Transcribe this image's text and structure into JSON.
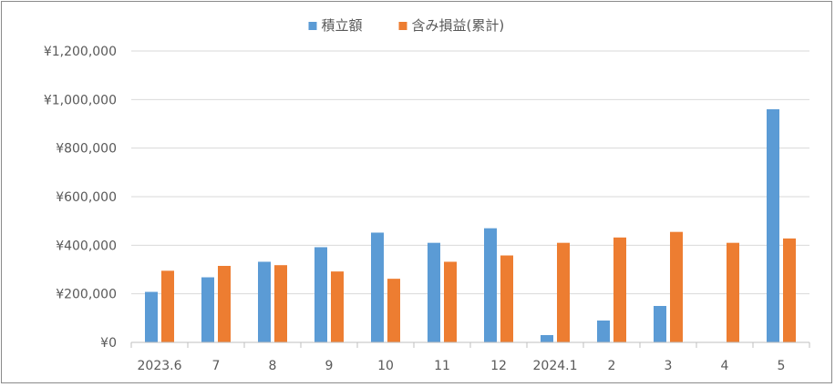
{
  "chart_data": {
    "type": "bar",
    "title": "",
    "xlabel": "",
    "ylabel": "",
    "categories": [
      "2023.6",
      "7",
      "8",
      "9",
      "10",
      "11",
      "12",
      "2024.1",
      "2",
      "3",
      "4",
      "5"
    ],
    "series": [
      {
        "name": "積立額",
        "color": "#5b9bd5",
        "values": [
          208000,
          268000,
          332000,
          392000,
          452000,
          410000,
          470000,
          30000,
          90000,
          150000,
          0,
          960000
        ]
      },
      {
        "name": "含み損益(累計)",
        "color": "#ed7d31",
        "values": [
          295000,
          315000,
          318000,
          292000,
          262000,
          332000,
          358000,
          410000,
          432000,
          455000,
          410000,
          428000
        ]
      }
    ],
    "ylim": [
      0,
      1200000
    ],
    "yticks": [
      0,
      200000,
      400000,
      600000,
      800000,
      1000000,
      1200000
    ],
    "ytick_labels": [
      "¥0",
      "¥200,000",
      "¥400,000",
      "¥600,000",
      "¥800,000",
      "¥1,000,000",
      "¥1,200,000"
    ],
    "grid": true,
    "legend_position": "top"
  },
  "colors": {
    "grid": "#d9d9d9",
    "axis": "#bfbfbf",
    "text": "#595959"
  }
}
